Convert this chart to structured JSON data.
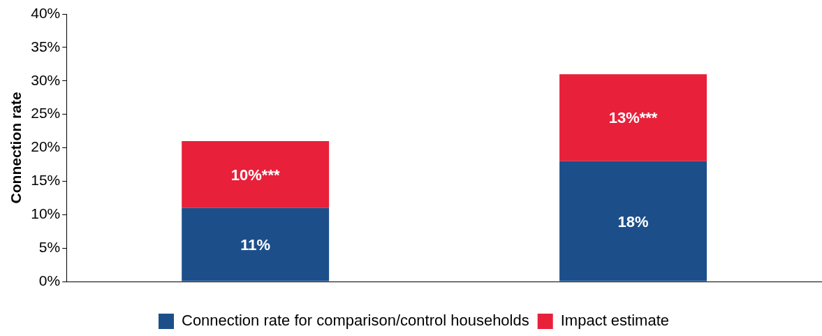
{
  "chart_data": {
    "type": "bar",
    "stacked": true,
    "ylabel": "Connection rate",
    "categories": [
      null,
      null
    ],
    "series": [
      {
        "name": "Connection rate for comparison/control households",
        "color": "#1c4f8a",
        "values": [
          11,
          18
        ],
        "value_labels": [
          "11%",
          "18%"
        ]
      },
      {
        "name": "Impact estimate",
        "color": "#e8203a",
        "values": [
          10,
          13
        ],
        "value_labels": [
          "10%***",
          "13%***"
        ]
      }
    ],
    "ylim": [
      0,
      40
    ],
    "yticks": [
      {
        "value": 0,
        "label": "0%"
      },
      {
        "value": 5,
        "label": "5%"
      },
      {
        "value": 10,
        "label": "10%"
      },
      {
        "value": 15,
        "label": "15%"
      },
      {
        "value": 20,
        "label": "20%"
      },
      {
        "value": 25,
        "label": "25%"
      },
      {
        "value": 30,
        "label": "30%"
      },
      {
        "value": 35,
        "label": "35%"
      },
      {
        "value": 40,
        "label": "40%"
      }
    ],
    "grid": false,
    "legend": "bottom"
  }
}
